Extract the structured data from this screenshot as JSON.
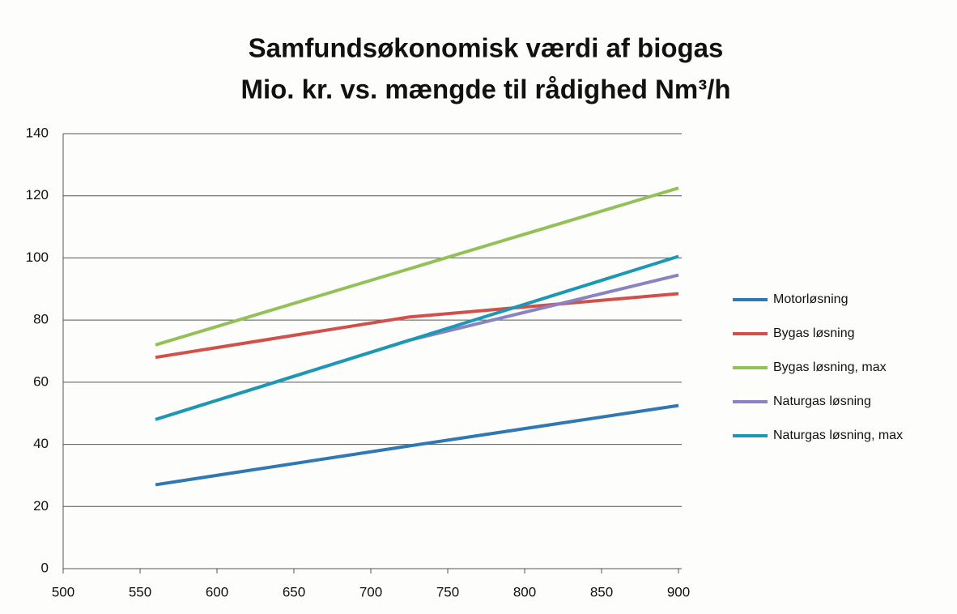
{
  "chart_data": {
    "type": "line",
    "title": "Samfundsøkonomisk værdi af biogas",
    "subtitle": "Mio. kr. vs. mængde til rådighed Nm³/h",
    "x": [
      560,
      725,
      900
    ],
    "series": [
      {
        "name": "Motorløsning",
        "color": "#2f78b4",
        "values": [
          27,
          39.5,
          52.5
        ]
      },
      {
        "name": "Bygas løsning",
        "color": "#d24f4a",
        "values": [
          68,
          81,
          88.5
        ]
      },
      {
        "name": "Bygas løsning, max",
        "color": "#93c158",
        "values": [
          72,
          96.5,
          122.5
        ]
      },
      {
        "name": "Naturgas løsning",
        "color": "#8a83c3",
        "values": [
          48,
          73.5,
          94.5
        ]
      },
      {
        "name": "Naturgas løsning, max",
        "color": "#1c98b4",
        "values": [
          48,
          73.5,
          100.5
        ]
      }
    ],
    "xlim": [
      500,
      900
    ],
    "xticks": [
      500,
      550,
      600,
      650,
      700,
      750,
      800,
      850,
      900
    ],
    "ylim": [
      0,
      140
    ],
    "yticks": [
      0,
      20,
      40,
      60,
      80,
      100,
      120,
      140
    ],
    "grid": true,
    "legend": "right"
  }
}
